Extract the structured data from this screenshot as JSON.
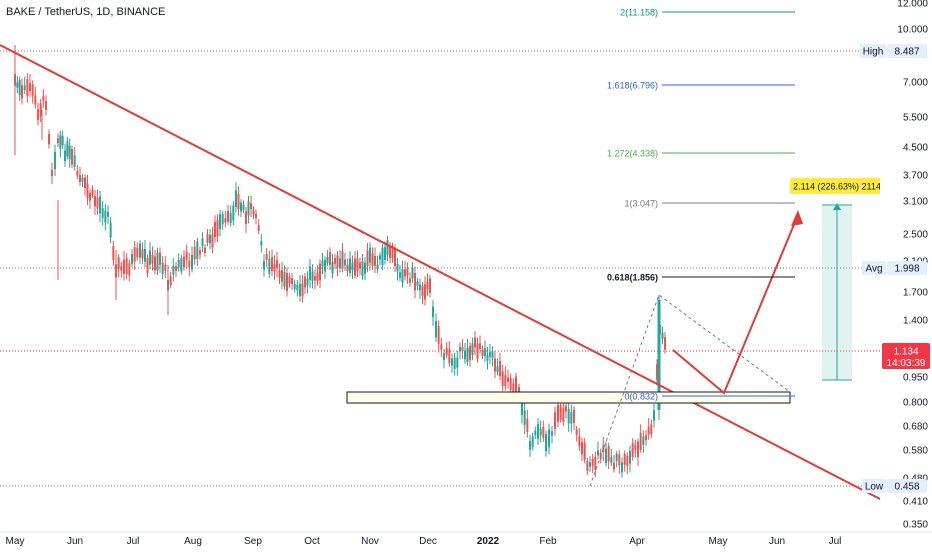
{
  "symbol_title": "BAKE / TetherUS, 1D, BINANCE",
  "chart_data": {
    "type": "candlestick",
    "title": "BAKE / TetherUS, 1D, BINANCE",
    "y_scale": "log",
    "ylim": [
      0.33,
      13.5
    ],
    "x_ticks": [
      "May",
      "Jun",
      "Jul",
      "Aug",
      "Sep",
      "Oct",
      "Nov",
      "Dec",
      "2022",
      "Feb",
      "Apr",
      "May",
      "Jun",
      "Jul"
    ],
    "y_ticks": [
      "12.000",
      "10.000",
      "7.000",
      "5.500",
      "4.500",
      "3.700",
      "3.100",
      "2.500",
      "2.100",
      "1.700",
      "1.400",
      "0.950",
      "0.800",
      "0.680",
      "0.580",
      "0.480",
      "0.410",
      "0.350"
    ],
    "fib_levels": [
      {
        "label": "2(11.158)",
        "value": 11.158,
        "color": "#089981"
      },
      {
        "label": "1.618(6.796)",
        "value": 6.796,
        "color": "#2962ff"
      },
      {
        "label": "1.272(4.338)",
        "value": 4.338,
        "color": "#4caf50"
      },
      {
        "label": "1(3.047)",
        "value": 3.047,
        "color": "#787b86"
      },
      {
        "label": "0.618(1.856)",
        "value": 1.856,
        "color": "#131722"
      },
      {
        "label": "0(0.832)",
        "value": 0.832,
        "color": "#2962ff"
      }
    ],
    "markers": {
      "high": {
        "label": "High",
        "value": "8.487"
      },
      "avg": {
        "label": "Avg",
        "value": "1.998"
      },
      "low": {
        "label": "Low",
        "value": "0.458"
      },
      "last_price": {
        "value": "1.134",
        "countdown": "14:03:39"
      }
    },
    "projection_label": "2.114 (226.63%) 2114",
    "colors": {
      "up": "#26a69a",
      "down": "#ef5350",
      "trend": "#e53935",
      "last": "#f23645",
      "target_bg": "#ffeb3b"
    }
  }
}
